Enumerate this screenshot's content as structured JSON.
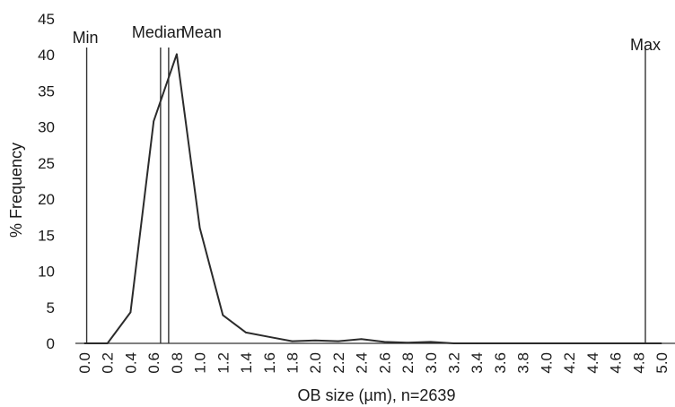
{
  "chart_data": {
    "type": "line",
    "title": "",
    "xlabel": "OB size (µm), n=2639",
    "ylabel": "% Frequency",
    "xlim": [
      0.0,
      5.0
    ],
    "ylim": [
      0,
      45
    ],
    "x_ticks": [
      "0.0",
      "0.2",
      "0.4",
      "0.6",
      "0.8",
      "1.0",
      "1.2",
      "1.4",
      "1.6",
      "1.8",
      "2.0",
      "2.2",
      "2.4",
      "2.6",
      "2.8",
      "3.0",
      "3.2",
      "3.4",
      "3.6",
      "3.8",
      "4.0",
      "4.2",
      "4.4",
      "4.6",
      "4.8",
      "5.0"
    ],
    "y_ticks": [
      "0",
      "5",
      "10",
      "15",
      "20",
      "25",
      "30",
      "35",
      "40",
      "45"
    ],
    "grid": false,
    "series": [
      {
        "x": [
          0.0,
          0.2,
          0.4,
          0.6,
          0.8,
          1.0,
          1.2,
          1.4,
          1.6,
          1.8,
          2.0,
          2.2,
          2.4,
          2.6,
          2.8,
          3.0,
          3.2,
          3.4,
          3.6,
          3.8,
          4.0,
          4.2,
          4.4,
          4.6,
          4.8,
          5.0
        ],
        "values": [
          0,
          0,
          4.3,
          30.8,
          40.1,
          16.0,
          3.9,
          1.5,
          0.9,
          0.3,
          0.4,
          0.3,
          0.6,
          0.2,
          0.1,
          0.2,
          0,
          0,
          0,
          0,
          0,
          0,
          0,
          0,
          0,
          0
        ]
      }
    ],
    "reference_lines": [
      {
        "label": "Min",
        "x": 0.02
      },
      {
        "label": "Median",
        "x": 0.66
      },
      {
        "label": "Mean",
        "x": 0.73
      },
      {
        "label": "Max",
        "x": 4.86
      }
    ],
    "colors": {
      "line": "#2b2b2b",
      "axis": "#333333",
      "text": "#1a1a1a"
    }
  }
}
